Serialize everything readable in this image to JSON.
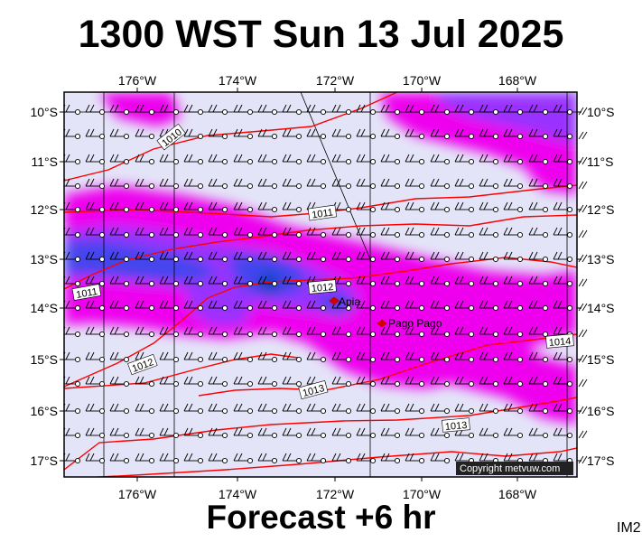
{
  "title": "1300 WST Sun 13 Jul 2025",
  "footer": "Forecast +6 hr",
  "corner_code": "IM2",
  "copyright": "Copyright metvuw.com",
  "lon_labels": [
    "176°W",
    "174°W",
    "172°W",
    "170°W",
    "168°W"
  ],
  "lat_labels": [
    "10°S",
    "11°S",
    "12°S",
    "13°S",
    "14°S",
    "15°S",
    "16°S",
    "17°S"
  ],
  "isobar_labels": [
    "1010",
    "1011",
    "1011",
    "1012",
    "1012",
    "1013",
    "1013",
    "1014"
  ],
  "places": [
    "Apia",
    "Pago Pago"
  ],
  "colors": {
    "background_precip": "#e4e4f8",
    "precip_light": "#ee00ee",
    "precip_medium": "#9933ff",
    "precip_heavy": "#4444ee",
    "precip_core": "#0044cc",
    "isobar": "#ff0000",
    "wind_barb": "#000000",
    "place_marker": "#cc0000"
  },
  "icons": [
    "wind-barb-icon",
    "place-marker-icon"
  ]
}
